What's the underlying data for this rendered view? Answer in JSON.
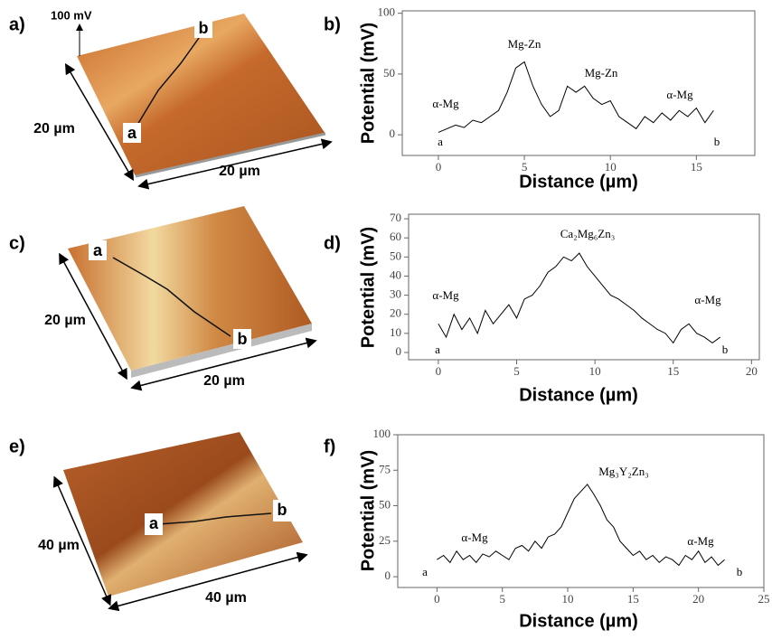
{
  "images": [
    {
      "panel": "a)",
      "z_scale": "100 mV",
      "start": "a",
      "end": "b",
      "depth": "20 µm",
      "width": "20 µm"
    },
    {
      "panel": "c)",
      "start": "a",
      "end": "b",
      "depth": "20 µm",
      "width": "20 µm"
    },
    {
      "panel": "e)",
      "start": "a",
      "end": "b",
      "depth": "40 µm",
      "width": "40 µm"
    }
  ],
  "chart_data": [
    {
      "type": "line",
      "panel": "b)",
      "x_label": "Distance (µm)",
      "y_label": "Potential (mV)",
      "color": "#000000",
      "annotations": [
        "α-Mg",
        "Mg-Zn",
        "Mg-Zn",
        "α-Mg",
        "a",
        "b"
      ],
      "xlim": [
        -2.1,
        18.4
      ],
      "xticks": [
        0,
        5,
        10,
        15
      ],
      "ylim": [
        -17,
        102
      ],
      "yticks": [
        0,
        50,
        100
      ],
      "x": [
        0,
        0.5,
        1,
        1.5,
        2,
        2.5,
        3,
        3.5,
        4,
        4.5,
        5,
        5.5,
        6,
        6.5,
        7,
        7.5,
        8,
        8.5,
        9,
        9.5,
        10,
        10.5,
        11,
        11.5,
        12,
        12.5,
        13,
        13.5,
        14,
        14.5,
        15,
        15.5,
        16
      ],
      "values": [
        2,
        5,
        8,
        6,
        12,
        10,
        15,
        20,
        35,
        55,
        60,
        40,
        25,
        15,
        20,
        40,
        35,
        40,
        30,
        25,
        28,
        15,
        10,
        5,
        15,
        10,
        18,
        12,
        20,
        15,
        22,
        10,
        20
      ]
    },
    {
      "type": "line",
      "panel": "d)",
      "x_label": "Distance (µm)",
      "y_label": "Potential (mV)",
      "color": "#000000",
      "annotations": [
        "α-Mg",
        "Ca₂Mg₆Zn₃",
        "α-Mg",
        "a",
        "b"
      ],
      "xlim": [
        -1.9,
        20.5
      ],
      "xticks": [
        0,
        5,
        10,
        15,
        20
      ],
      "ylim": [
        -3.8,
        72.4
      ],
      "yticks": [
        0,
        10,
        20,
        30,
        40,
        50,
        60,
        70
      ],
      "x": [
        0,
        0.5,
        1,
        1.5,
        2,
        2.5,
        3,
        3.5,
        4,
        4.5,
        5,
        5.5,
        6,
        6.5,
        7,
        7.5,
        8,
        8.5,
        9,
        9.5,
        10,
        10.5,
        11,
        11.5,
        12,
        12.5,
        13,
        13.5,
        14,
        14.5,
        15,
        15.5,
        16,
        16.5,
        17,
        17.5,
        18
      ],
      "values": [
        15,
        8,
        20,
        12,
        18,
        10,
        22,
        15,
        20,
        25,
        18,
        28,
        30,
        35,
        42,
        45,
        50,
        48,
        52,
        45,
        40,
        35,
        30,
        28,
        25,
        22,
        18,
        15,
        12,
        10,
        5,
        12,
        15,
        10,
        8,
        5,
        8
      ]
    },
    {
      "type": "line",
      "panel": "f)",
      "x_label": "Distance (µm)",
      "y_label": "Potential (mV)",
      "color": "#000000",
      "annotations": [
        "α-Mg",
        "Mg₃Y₂Zn₃",
        "α-Mg",
        "a",
        "b"
      ],
      "xlim": [
        -3,
        25
      ],
      "xticks": [
        0,
        5,
        10,
        15,
        20,
        25
      ],
      "ylim": [
        -7.6,
        100
      ],
      "yticks": [
        0,
        25,
        50,
        75,
        100
      ],
      "x": [
        0,
        0.5,
        1,
        1.5,
        2,
        2.5,
        3,
        3.5,
        4,
        4.5,
        5,
        5.5,
        6,
        6.5,
        7,
        7.5,
        8,
        8.5,
        9,
        9.5,
        10,
        10.5,
        11,
        11.5,
        12,
        12.5,
        13,
        13.5,
        14,
        14.5,
        15,
        15.5,
        16,
        16.5,
        17,
        17.5,
        18,
        18.5,
        19,
        19.5,
        20,
        20.5,
        21,
        21.5,
        22
      ],
      "values": [
        12,
        15,
        10,
        18,
        12,
        15,
        10,
        16,
        14,
        18,
        15,
        12,
        20,
        22,
        18,
        25,
        20,
        28,
        30,
        35,
        45,
        55,
        60,
        65,
        58,
        50,
        40,
        35,
        25,
        20,
        15,
        18,
        12,
        15,
        10,
        14,
        12,
        8,
        15,
        12,
        18,
        10,
        14,
        8,
        12
      ]
    }
  ]
}
